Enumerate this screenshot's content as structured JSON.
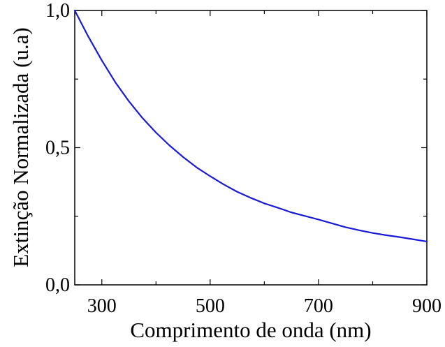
{
  "chart_data": {
    "type": "line",
    "title": "",
    "xlabel": "Comprimento de onda (nm)",
    "ylabel": "Extinção Normalizada (u.a)",
    "xlim": [
      250,
      900
    ],
    "ylim": [
      0,
      1.0
    ],
    "x_ticks": [
      300,
      500,
      700,
      900
    ],
    "x_tick_labels": [
      "300",
      "500",
      "700",
      "900"
    ],
    "y_ticks": [
      0,
      0.5,
      1.0
    ],
    "y_tick_labels": [
      "0,0",
      "0,5",
      "1,0"
    ],
    "grid": false,
    "legend": "none",
    "series": [
      {
        "color": "#1a1ad6",
        "x": [
          250,
          275,
          300,
          325,
          350,
          375,
          400,
          425,
          450,
          475,
          500,
          525,
          550,
          575,
          600,
          625,
          650,
          675,
          700,
          725,
          750,
          775,
          800,
          825,
          850,
          875,
          900
        ],
        "y": [
          1.0,
          0.905,
          0.818,
          0.738,
          0.669,
          0.608,
          0.555,
          0.508,
          0.466,
          0.428,
          0.396,
          0.366,
          0.339,
          0.317,
          0.297,
          0.281,
          0.264,
          0.251,
          0.238,
          0.224,
          0.21,
          0.199,
          0.189,
          0.181,
          0.174,
          0.166,
          0.158
        ]
      }
    ]
  }
}
